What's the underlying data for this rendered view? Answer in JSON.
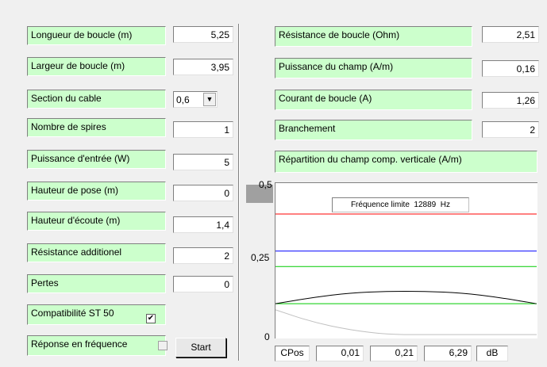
{
  "left_params": [
    {
      "label": "Longueur de boucle (m)",
      "value": "5,25"
    },
    {
      "label": "Largeur de boucle (m)",
      "value": "3,95"
    },
    {
      "label": "Section du cable",
      "value": "0,6"
    },
    {
      "label": "Nombre de spires",
      "value": "1"
    },
    {
      "label": "Puissance d'entrée (W)",
      "value": "5"
    },
    {
      "label": "Hauteur de pose (m)",
      "value": "0"
    },
    {
      "label": "Hauteur d'écoute (m)",
      "value": "1,4"
    },
    {
      "label": "Résistance additionel",
      "value": "2"
    },
    {
      "label": "Pertes",
      "value": "0"
    }
  ],
  "compat": {
    "label": "Compatibilité ST 50",
    "checked_mark": "✔"
  },
  "response": {
    "label": "Réponse en fréquence"
  },
  "start_label": "Start",
  "combo_arrow": "▼",
  "right_params": [
    {
      "label": "Résistance de boucle (Ohm)",
      "value": "2,51"
    },
    {
      "label": "Puissance du champ (A/m)",
      "value": "0,16"
    },
    {
      "label": "Courant de boucle (A)",
      "value": "1,26"
    },
    {
      "label": "Branchement",
      "value": "2"
    }
  ],
  "chart_title": "Répartition du champ comp. verticale (A/m)",
  "freq_label": "Fréquence limite  12889  Hz",
  "bottom": {
    "cpos_label": "CPos",
    "v1": "0,01",
    "v2": "0,21",
    "v3": "6,29",
    "unit": "dB"
  },
  "chart_data": {
    "type": "line",
    "title": "Répartition du champ comp. verticale (A/m)",
    "ylim": [
      0,
      0.5
    ],
    "y_ticks": [
      "0,5",
      "0,25",
      "0"
    ],
    "series": [
      {
        "color": "#ff0000",
        "values": [
          0.4,
          0.4
        ]
      },
      {
        "color": "#0000ff",
        "values": [
          0.28,
          0.28
        ]
      },
      {
        "color": "#00cc00",
        "values": [
          0.23,
          0.23
        ]
      },
      {
        "color": "#00cc00",
        "values": [
          0.11,
          0.11
        ]
      },
      {
        "color": "#000000",
        "values": [
          0.11,
          0.13,
          0.145,
          0.15,
          0.15,
          0.145,
          0.13,
          0.11
        ]
      },
      {
        "color": "#c0c0c0",
        "values": [
          0.09,
          0.05,
          0.025,
          0.01,
          0.01,
          0.01,
          0.01,
          0.01
        ]
      }
    ]
  }
}
